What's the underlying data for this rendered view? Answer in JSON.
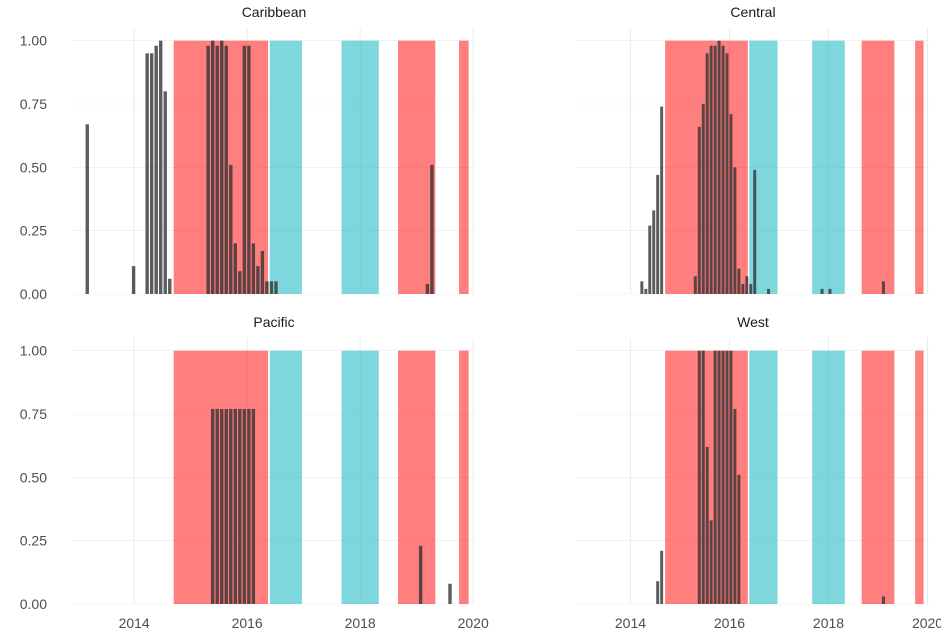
{
  "colors": {
    "background": "#ffffff",
    "grid": "#ebebeb",
    "bar": "#333333",
    "red_band": "#ff0000",
    "teal_band": "#00b0be",
    "band_opacity": 0.5,
    "bar_opacity": 0.8
  },
  "chart_data": {
    "type": "bar",
    "layout": "facet-grid 2x2",
    "grid": true,
    "legend": "none",
    "xlim": [
      2012.9,
      2020.05
    ],
    "ylim": [
      0,
      1.05
    ],
    "x_ticks": [
      2014,
      2016,
      2018,
      2020
    ],
    "x_tick_labels": [
      "2014",
      "2016",
      "2018",
      "2020"
    ],
    "y_ticks": [
      0,
      0.25,
      0.5,
      0.75,
      1.0
    ],
    "y_tick_labels": [
      "0.00",
      "0.25",
      "0.50",
      "0.75",
      "1.00"
    ],
    "bar_width_years": 0.06,
    "bands": [
      {
        "start": 2014.7,
        "end": 2016.37,
        "color": "red"
      },
      {
        "start": 2016.4,
        "end": 2016.97,
        "color": "teal"
      },
      {
        "start": 2017.67,
        "end": 2018.33,
        "color": "teal"
      },
      {
        "start": 2018.67,
        "end": 2019.33,
        "color": "red"
      },
      {
        "start": 2019.75,
        "end": 2019.92,
        "color": "red"
      }
    ],
    "panels": [
      {
        "title": "Caribbean",
        "x": [
          2013.17,
          2013.99,
          2014.23,
          2014.31,
          2014.39,
          2014.47,
          2014.55,
          2014.63,
          2015.31,
          2015.39,
          2015.47,
          2015.55,
          2015.63,
          2015.71,
          2015.79,
          2015.87,
          2015.95,
          2016.03,
          2016.11,
          2016.19,
          2016.27,
          2016.35,
          2016.43,
          2016.51,
          2019.19,
          2019.27
        ],
        "values": [
          0.67,
          0.11,
          0.95,
          0.95,
          0.98,
          1.0,
          0.8,
          0.06,
          0.98,
          1.0,
          0.98,
          1.0,
          0.98,
          0.51,
          0.2,
          0.09,
          0.98,
          0.98,
          0.2,
          0.11,
          0.17,
          0.05,
          0.05,
          0.05,
          0.04,
          0.51
        ]
      },
      {
        "title": "Central",
        "x": [
          2014.23,
          2014.31,
          2014.39,
          2014.47,
          2014.55,
          2014.63,
          2015.31,
          2015.39,
          2015.47,
          2015.55,
          2015.63,
          2015.71,
          2015.79,
          2015.87,
          2015.95,
          2016.03,
          2016.11,
          2016.19,
          2016.27,
          2016.35,
          2016.43,
          2016.51,
          2016.79,
          2017.87,
          2018.03,
          2019.11
        ],
        "values": [
          0.05,
          0.02,
          0.27,
          0.33,
          0.47,
          0.74,
          0.07,
          0.66,
          0.75,
          0.95,
          0.98,
          0.98,
          1.0,
          0.98,
          0.95,
          0.71,
          0.5,
          0.1,
          0.04,
          0.07,
          0.04,
          0.49,
          0.02,
          0.02,
          0.02,
          0.05
        ]
      },
      {
        "title": "Pacific",
        "x": [
          2015.39,
          2015.47,
          2015.55,
          2015.63,
          2015.71,
          2015.79,
          2015.87,
          2015.95,
          2016.03,
          2016.11,
          2019.07,
          2019.59
        ],
        "values": [
          0.77,
          0.77,
          0.77,
          0.77,
          0.77,
          0.77,
          0.77,
          0.77,
          0.77,
          0.77,
          0.23,
          0.08
        ]
      },
      {
        "title": "West",
        "x": [
          2014.55,
          2014.63,
          2015.39,
          2015.47,
          2015.55,
          2015.63,
          2015.71,
          2015.79,
          2015.87,
          2015.95,
          2016.03,
          2016.11,
          2016.19,
          2019.11
        ],
        "values": [
          0.09,
          0.21,
          1.0,
          1.0,
          0.62,
          0.33,
          1.0,
          1.0,
          1.0,
          1.0,
          1.0,
          0.77,
          0.51,
          0.03
        ]
      }
    ]
  }
}
